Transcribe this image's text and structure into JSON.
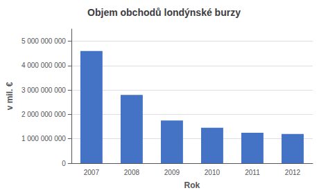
{
  "chart_data": {
    "type": "bar",
    "title": "Objem obchodů londýnské burzy",
    "xlabel": "Rok",
    "ylabel": "v mil. €",
    "categories": [
      "2007",
      "2008",
      "2009",
      "2010",
      "2011",
      "2012"
    ],
    "values": [
      4600000000,
      2800000000,
      1750000000,
      1450000000,
      1250000000,
      1200000000
    ],
    "color": "#4472C4",
    "ylim": [
      0,
      5500000000
    ],
    "yticks": [
      0,
      {
        "value": 1000000000,
        "label": "1 000 000 000"
      },
      {
        "value": 2000000000,
        "label": "2 000 000 000"
      },
      {
        "value": 3000000000,
        "label": "3 000 000 000"
      },
      {
        "value": 4000000000,
        "label": "4 000 000 000"
      },
      {
        "value": 5000000000,
        "label": "5 000 000 000"
      }
    ],
    "grid": true
  }
}
